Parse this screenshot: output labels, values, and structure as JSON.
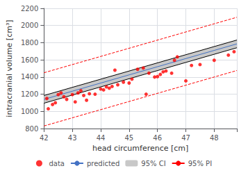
{
  "chart_data": {
    "type": "scatter",
    "xlabel": "head circumference [cm]",
    "ylabel": "intracranial volume [cm³]",
    "xlim": [
      42,
      48.8
    ],
    "ylim": [
      800,
      2200
    ],
    "xticks": [
      42,
      43,
      44,
      45,
      46,
      47,
      48
    ],
    "yticks": [
      800,
      1000,
      1200,
      1400,
      1600,
      1800,
      2000,
      2200
    ],
    "grid": true,
    "legend": "bottom",
    "series": [
      {
        "name": "data",
        "type": "scatter",
        "color": "#ff0000",
        "marker": "circle",
        "x": [
          42.1,
          42.15,
          42.3,
          42.4,
          42.5,
          42.6,
          42.7,
          42.8,
          43.0,
          43.1,
          43.2,
          43.3,
          43.4,
          43.5,
          43.6,
          43.8,
          44.0,
          44.1,
          44.2,
          44.3,
          44.4,
          44.5,
          44.6,
          44.8,
          45.0,
          45.1,
          45.3,
          45.5,
          45.6,
          45.7,
          45.9,
          46.0,
          46.1,
          46.2,
          46.3,
          46.5,
          46.6,
          46.7,
          47.0,
          47.2,
          47.5,
          48.0,
          48.5,
          48.7
        ],
        "values": [
          1150,
          1030,
          1080,
          1100,
          1195,
          1215,
          1170,
          1140,
          1195,
          1110,
          1215,
          1240,
          1185,
          1130,
          1205,
          1200,
          1260,
          1250,
          1285,
          1270,
          1290,
          1480,
          1310,
          1340,
          1330,
          1375,
          1490,
          1505,
          1200,
          1445,
          1400,
          1405,
          1430,
          1460,
          1470,
          1445,
          1595,
          1635,
          1355,
          1535,
          1545,
          1595,
          1655,
          1695
        ]
      },
      {
        "name": "predicted",
        "type": "line",
        "color": "#4472c4",
        "line_style": "solid",
        "x": [
          42,
          48.8
        ],
        "values": [
          1140,
          1786
        ]
      },
      {
        "name": "95% CI",
        "type": "band",
        "color": "#c8c8c8",
        "x": [
          42,
          48.8
        ],
        "lower": [
          1095,
          1741
        ],
        "upper": [
          1185,
          1831
        ]
      },
      {
        "name": "95% CI",
        "type": "line",
        "color": "#000000",
        "line_style": "solid",
        "x": [
          42,
          48.8
        ],
        "values": [
          1185,
          1831
        ]
      },
      {
        "name": "95% CI",
        "type": "line",
        "color": "#000000",
        "line_style": "solid",
        "x": [
          42,
          48.8
        ],
        "values": [
          1095,
          1741
        ]
      },
      {
        "name": "95% PI",
        "type": "line",
        "color": "#ff0000",
        "line_style": "dashed",
        "x": [
          42,
          48.8
        ],
        "values": [
          1450,
          2096
        ]
      },
      {
        "name": "95% PI",
        "type": "line",
        "color": "#ff0000",
        "line_style": "dashed",
        "x": [
          42,
          48.8
        ],
        "values": [
          830,
          1476
        ]
      }
    ]
  }
}
